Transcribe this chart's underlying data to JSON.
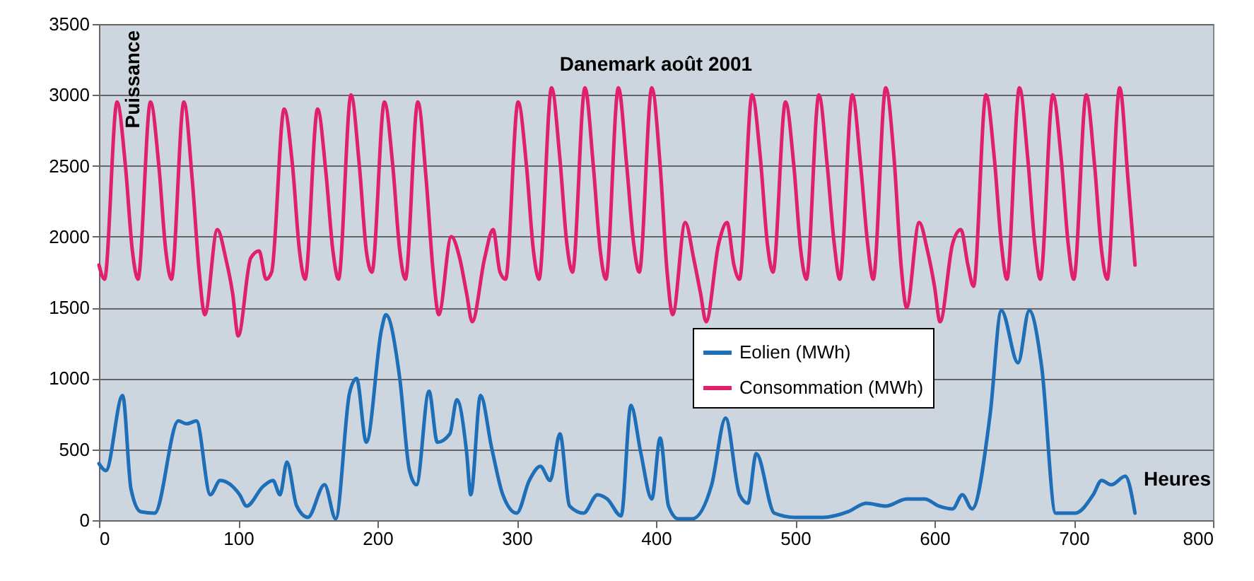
{
  "chart_data": {
    "type": "line",
    "title": "Danemark août 2001",
    "xlabel": "Heures",
    "ylabel": "Puissance",
    "xlim": [
      0,
      800
    ],
    "xticks": [
      0,
      100,
      200,
      300,
      400,
      500,
      600,
      700,
      800
    ],
    "ylim": [
      0,
      3500
    ],
    "yticks": [
      0,
      500,
      1000,
      1500,
      2000,
      2500,
      3000,
      3500
    ],
    "grid": "y",
    "legend": "right",
    "line_style": "solid",
    "marker": "none",
    "series": [
      {
        "name": "Eolien (MWh)",
        "color": "#1f6fb8",
        "x": [
          0,
          5,
          17,
          23,
          30,
          40,
          57,
          63,
          70,
          80,
          87,
          101,
          106,
          118,
          125,
          130,
          135,
          142,
          150,
          162,
          170,
          180,
          185,
          192,
          203,
          206,
          216,
          223,
          228,
          237,
          243,
          252,
          257,
          264,
          267,
          274,
          282,
          290,
          300,
          309,
          317,
          324,
          331,
          338,
          348,
          358,
          365,
          375,
          382,
          389,
          397,
          403,
          409,
          416,
          426,
          440,
          450,
          460,
          466,
          472,
          485,
          500,
          520,
          538,
          551,
          565,
          580,
          593,
          603,
          613,
          620,
          627,
          640,
          648,
          660,
          668,
          677,
          687,
          701,
          714,
          720,
          727,
          737,
          744
        ],
        "values": [
          400,
          350,
          880,
          220,
          60,
          50,
          700,
          680,
          700,
          180,
          280,
          180,
          100,
          240,
          280,
          180,
          410,
          100,
          20,
          250,
          10,
          900,
          1000,
          550,
          1350,
          1450,
          1000,
          350,
          250,
          910,
          550,
          610,
          850,
          480,
          180,
          880,
          510,
          180,
          50,
          280,
          380,
          280,
          610,
          100,
          50,
          180,
          150,
          30,
          810,
          480,
          150,
          580,
          100,
          10,
          10,
          250,
          720,
          180,
          120,
          470,
          50,
          20,
          20,
          60,
          120,
          100,
          150,
          150,
          100,
          80,
          180,
          80,
          750,
          1480,
          1110,
          1480,
          1080,
          50,
          50,
          180,
          280,
          250,
          310,
          50
        ]
      },
      {
        "name": "Consommation (MWh)",
        "color": "#e0206e",
        "x": [
          0,
          4,
          13,
          19,
          24,
          28,
          37,
          43,
          48,
          52,
          61,
          67,
          72,
          76,
          85,
          91,
          96,
          100,
          109,
          115,
          120,
          124,
          133,
          139,
          144,
          148,
          157,
          163,
          168,
          172,
          181,
          187,
          192,
          196,
          205,
          211,
          216,
          220,
          229,
          235,
          240,
          244,
          253,
          259,
          264,
          268,
          277,
          283,
          288,
          292,
          301,
          307,
          312,
          316,
          325,
          331,
          336,
          340,
          349,
          355,
          360,
          364,
          373,
          379,
          384,
          388,
          397,
          403,
          408,
          412,
          421,
          427,
          432,
          436,
          445,
          451,
          456,
          460,
          469,
          475,
          480,
          484,
          493,
          499,
          504,
          508,
          517,
          523,
          528,
          532,
          541,
          547,
          552,
          556,
          565,
          571,
          576,
          580,
          589,
          595,
          600,
          604,
          613,
          619,
          624,
          628,
          637,
          643,
          648,
          652,
          661,
          667,
          672,
          676,
          685,
          691,
          696,
          700,
          709,
          715,
          720,
          724,
          733,
          739,
          744
        ],
        "values": [
          1800,
          1700,
          2950,
          2500,
          1900,
          1700,
          2950,
          2500,
          1900,
          1700,
          2950,
          2400,
          1750,
          1450,
          2050,
          1850,
          1600,
          1300,
          1850,
          1900,
          1700,
          1750,
          2900,
          2500,
          1900,
          1700,
          2900,
          2450,
          1900,
          1700,
          3000,
          2500,
          1900,
          1750,
          2950,
          2500,
          1900,
          1700,
          2950,
          2400,
          1750,
          1450,
          2000,
          1850,
          1600,
          1400,
          1850,
          2050,
          1750,
          1700,
          2950,
          2500,
          1900,
          1700,
          3050,
          2550,
          1950,
          1750,
          3050,
          2500,
          1900,
          1700,
          3050,
          2500,
          1950,
          1750,
          3050,
          2500,
          1750,
          1450,
          2100,
          1850,
          1600,
          1400,
          1950,
          2100,
          1800,
          1700,
          3000,
          2550,
          1950,
          1750,
          2950,
          2500,
          1900,
          1700,
          3000,
          2500,
          1950,
          1700,
          3000,
          2500,
          1950,
          1700,
          3050,
          2550,
          1800,
          1500,
          2100,
          1900,
          1650,
          1400,
          1950,
          2050,
          1800,
          1650,
          3000,
          2550,
          1950,
          1700,
          3050,
          2550,
          1950,
          1700,
          3000,
          2550,
          1950,
          1700,
          3000,
          2500,
          1900,
          1700,
          3050,
          2400,
          1800
        ]
      }
    ]
  }
}
